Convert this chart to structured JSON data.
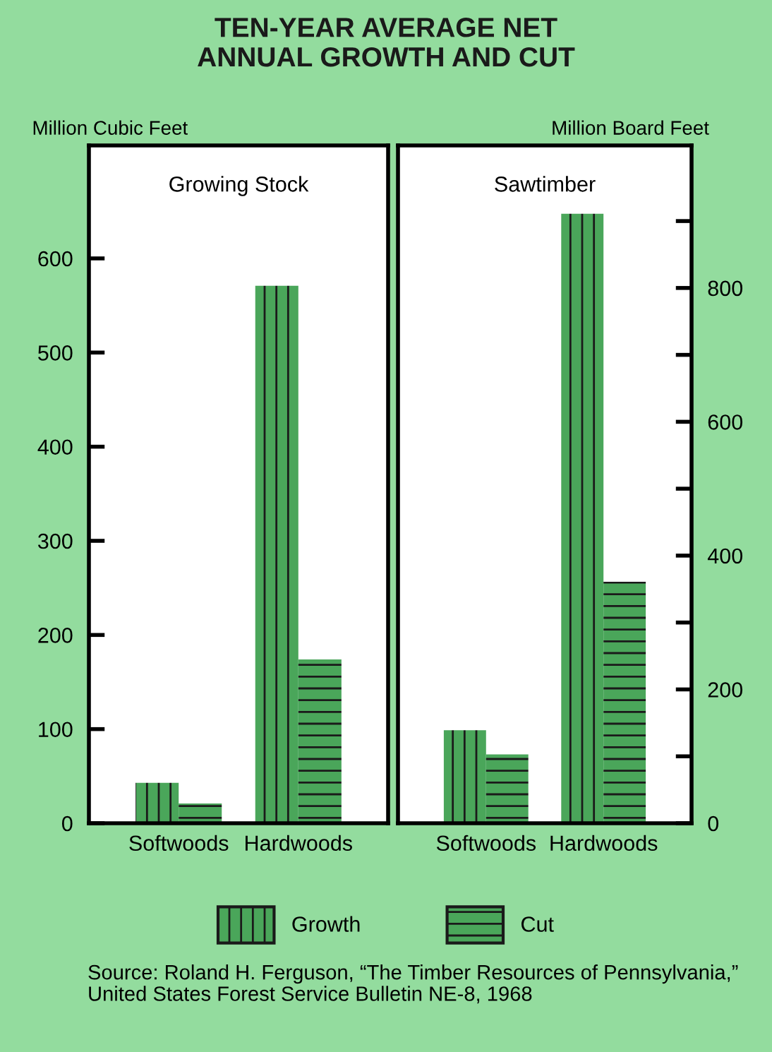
{
  "chart_data": [
    {
      "type": "bar",
      "title": "TEN-YEAR AVERAGE NET\nANNUAL GROWTH AND CUT",
      "subtitle": "Growing Stock",
      "ylabel": "Million Cubic Feet",
      "categories": [
        "Softwoods",
        "Hardwoods"
      ],
      "series": [
        {
          "name": "Growth",
          "color": "#4aa65a",
          "values": [
            43,
            571
          ]
        },
        {
          "name": "Cut",
          "color": "#4aa65a",
          "values": [
            21,
            174
          ]
        }
      ],
      "ylim": [
        0,
        720
      ],
      "yticks": [
        0,
        100,
        200,
        300,
        400,
        500,
        600
      ],
      "grid": false,
      "legend": "bottom",
      "tick_labels": "xy",
      "annotations": [
        "Source: Roland H. Ferguson, “The Timber Resources of Pennsylvania,” United States Forest Service Bulletin NE-8, 1968"
      ]
    },
    {
      "type": "bar",
      "subtitle": "Sawtimber",
      "y2label": "Million Board Feet",
      "categories": [
        "Softwoods",
        "Hardwoods"
      ],
      "series": [
        {
          "color": "#4aa65a",
          "axis": "y2",
          "values": [
            139,
            911
          ]
        },
        {
          "color": "#4aa65a",
          "axis": "y2",
          "values": [
            103,
            361
          ]
        }
      ],
      "y2lim": [
        0,
        1013
      ],
      "y2ticks": [
        0,
        {
          "value": 100,
          "label": null
        },
        200,
        {
          "value": 300,
          "label": null
        },
        400,
        {
          "value": 500,
          "label": null
        },
        600,
        {
          "value": 700,
          "label": null
        },
        800,
        {
          "value": 900,
          "label": null
        }
      ],
      "grid": false,
      "legend": false
    }
  ]
}
